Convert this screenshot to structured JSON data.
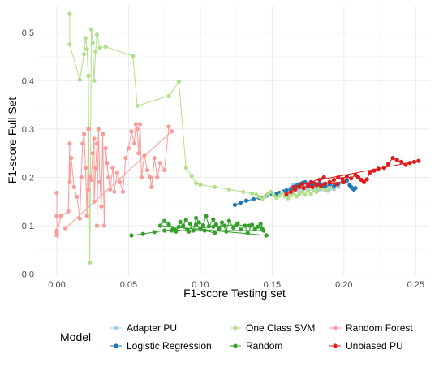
{
  "chart_data": {
    "type": "scatter",
    "xlabel": "F1-score Testing set",
    "ylabel": "F1-score Full Set",
    "xlim": [
      -0.013,
      0.26
    ],
    "ylim": [
      -0.004,
      0.555
    ],
    "x_ticks": [
      0.0,
      0.05,
      0.1,
      0.15,
      0.2,
      0.25
    ],
    "x_tick_labels": [
      "0.00",
      "0.05",
      "0.10",
      "0.15",
      "0.20",
      "0.25"
    ],
    "y_ticks": [
      0.0,
      0.1,
      0.2,
      0.3,
      0.4,
      0.5
    ],
    "y_tick_labels": [
      "0.0",
      "0.1",
      "0.2",
      "0.3",
      "0.4",
      "0.5"
    ],
    "grid": true,
    "legend_title": "Model",
    "legend_position": "bottom",
    "series": [
      {
        "name": "Adapter PU",
        "color": "#a6cee3",
        "points": [
          [
            0.16,
            0.175
          ],
          [
            0.163,
            0.178
          ],
          [
            0.166,
            0.181
          ],
          [
            0.169,
            0.184
          ],
          [
            0.172,
            0.181
          ],
          [
            0.175,
            0.178
          ],
          [
            0.178,
            0.183
          ],
          [
            0.181,
            0.18
          ],
          [
            0.184,
            0.177
          ],
          [
            0.187,
            0.182
          ],
          [
            0.19,
            0.179
          ],
          [
            0.193,
            0.176
          ],
          [
            0.174,
            0.186
          ],
          [
            0.168,
            0.172
          ],
          [
            0.182,
            0.174
          ],
          [
            0.177,
            0.189
          ],
          [
            0.186,
            0.187
          ],
          [
            0.164,
            0.185
          ],
          [
            0.171,
            0.176
          ],
          [
            0.179,
            0.173
          ],
          [
            0.189,
            0.172
          ],
          [
            0.196,
            0.18
          ]
        ]
      },
      {
        "name": "Logistic Regression",
        "color": "#1f78b4",
        "points": [
          [
            0.124,
            0.143
          ],
          [
            0.128,
            0.148
          ],
          [
            0.132,
            0.152
          ],
          [
            0.137,
            0.155
          ],
          [
            0.141,
            0.158
          ],
          [
            0.146,
            0.162
          ],
          [
            0.15,
            0.165
          ],
          [
            0.153,
            0.166
          ],
          [
            0.155,
            0.168
          ],
          [
            0.158,
            0.171
          ],
          [
            0.16,
            0.173
          ],
          [
            0.163,
            0.176
          ],
          [
            0.165,
            0.179
          ],
          [
            0.167,
            0.183
          ],
          [
            0.169,
            0.186
          ],
          [
            0.171,
            0.188
          ],
          [
            0.173,
            0.19
          ],
          [
            0.175,
            0.185
          ],
          [
            0.177,
            0.182
          ],
          [
            0.179,
            0.188
          ],
          [
            0.181,
            0.184
          ],
          [
            0.183,
            0.187
          ],
          [
            0.185,
            0.183
          ],
          [
            0.187,
            0.181
          ],
          [
            0.19,
            0.185
          ],
          [
            0.193,
            0.182
          ],
          [
            0.196,
            0.186
          ],
          [
            0.199,
            0.19
          ],
          [
            0.202,
            0.194
          ],
          [
            0.204,
            0.184
          ],
          [
            0.205,
            0.18
          ],
          [
            0.206,
            0.177
          ],
          [
            0.207,
            0.175
          ],
          [
            0.208,
            0.178
          ]
        ]
      },
      {
        "name": "One Class SVM",
        "color": "#b2df8a",
        "points": [
          [
            0.009,
            0.538
          ],
          [
            0.009,
            0.475
          ],
          [
            0.016,
            0.402
          ],
          [
            0.019,
            0.455
          ],
          [
            0.02,
            0.488
          ],
          [
            0.021,
            0.465
          ],
          [
            0.022,
            0.41
          ],
          [
            0.023,
            0.024
          ],
          [
            0.024,
            0.506
          ],
          [
            0.025,
            0.478
          ],
          [
            0.026,
            0.4
          ],
          [
            0.027,
            0.46
          ],
          [
            0.028,
            0.495
          ],
          [
            0.03,
            0.468
          ],
          [
            0.034,
            0.47
          ],
          [
            0.053,
            0.451
          ],
          [
            0.056,
            0.348
          ],
          [
            0.078,
            0.368
          ],
          [
            0.085,
            0.398
          ],
          [
            0.09,
            0.22
          ],
          [
            0.094,
            0.203
          ],
          [
            0.097,
            0.188
          ],
          [
            0.1,
            0.185
          ],
          [
            0.11,
            0.18
          ],
          [
            0.12,
            0.175
          ],
          [
            0.13,
            0.17
          ],
          [
            0.136,
            0.167
          ],
          [
            0.139,
            0.164
          ],
          [
            0.141,
            0.16
          ],
          [
            0.143,
            0.155
          ],
          [
            0.145,
            0.16
          ],
          [
            0.147,
            0.165
          ],
          [
            0.149,
            0.17
          ],
          [
            0.151,
            0.163
          ],
          [
            0.153,
            0.158
          ],
          [
            0.155,
            0.162
          ],
          [
            0.157,
            0.168
          ],
          [
            0.159,
            0.161
          ],
          [
            0.161,
            0.157
          ],
          [
            0.163,
            0.163
          ],
          [
            0.165,
            0.167
          ],
          [
            0.167,
            0.161
          ],
          [
            0.169,
            0.165
          ],
          [
            0.171,
            0.17
          ],
          [
            0.173,
            0.164
          ],
          [
            0.175,
            0.172
          ],
          [
            0.177,
            0.166
          ],
          [
            0.179,
            0.175
          ],
          [
            0.181,
            0.17
          ],
          [
            0.183,
            0.178
          ],
          [
            0.187,
            0.174
          ],
          [
            0.19,
            0.178
          ]
        ]
      },
      {
        "name": "Random",
        "color": "#33a02c",
        "points": [
          [
            0.052,
            0.08
          ],
          [
            0.06,
            0.083
          ],
          [
            0.068,
            0.087
          ],
          [
            0.075,
            0.09
          ],
          [
            0.082,
            0.092
          ],
          [
            0.092,
            0.088
          ],
          [
            0.1,
            0.095
          ],
          [
            0.109,
            0.098
          ],
          [
            0.117,
            0.1
          ],
          [
            0.125,
            0.102
          ],
          [
            0.134,
            0.1
          ],
          [
            0.143,
            0.095
          ],
          [
            0.146,
            0.08
          ],
          [
            0.072,
            0.1
          ],
          [
            0.075,
            0.11
          ],
          [
            0.078,
            0.103
          ],
          [
            0.081,
            0.095
          ],
          [
            0.083,
            0.088
          ],
          [
            0.086,
            0.108
          ],
          [
            0.088,
            0.1
          ],
          [
            0.09,
            0.112
          ],
          [
            0.093,
            0.104
          ],
          [
            0.095,
            0.09
          ],
          [
            0.097,
            0.116
          ],
          [
            0.099,
            0.107
          ],
          [
            0.102,
            0.101
          ],
          [
            0.104,
            0.12
          ],
          [
            0.106,
            0.099
          ],
          [
            0.109,
            0.113
          ],
          [
            0.111,
            0.103
          ],
          [
            0.113,
            0.094
          ],
          [
            0.115,
            0.107
          ],
          [
            0.118,
            0.088
          ],
          [
            0.12,
            0.11
          ],
          [
            0.123,
            0.096
          ],
          [
            0.126,
            0.105
          ],
          [
            0.128,
            0.092
          ],
          [
            0.131,
            0.1
          ],
          [
            0.133,
            0.085
          ],
          [
            0.136,
            0.102
          ],
          [
            0.138,
            0.093
          ],
          [
            0.14,
            0.098
          ],
          [
            0.142,
            0.104
          ],
          [
            0.144,
            0.09
          ],
          [
            0.08,
            0.09
          ],
          [
            0.085,
            0.098
          ],
          [
            0.091,
            0.092
          ],
          [
            0.097,
            0.102
          ],
          [
            0.103,
            0.09
          ],
          [
            0.11,
            0.085
          ]
        ]
      },
      {
        "name": "Random Forest",
        "color": "#fb9a99",
        "points": [
          [
            0.0,
            0.12
          ],
          [
            0.0,
            0.168
          ],
          [
            0.0,
            0.09
          ],
          [
            0.0,
            0.08
          ],
          [
            0.0,
            0.085
          ],
          [
            0.003,
            0.12
          ],
          [
            0.008,
            0.13
          ],
          [
            0.009,
            0.27
          ],
          [
            0.009,
            0.19
          ],
          [
            0.01,
            0.24
          ],
          [
            0.012,
            0.18
          ],
          [
            0.014,
            0.16
          ],
          [
            0.016,
            0.115
          ],
          [
            0.017,
            0.2
          ],
          [
            0.018,
            0.27
          ],
          [
            0.019,
            0.29
          ],
          [
            0.02,
            0.22
          ],
          [
            0.021,
            0.12
          ],
          [
            0.022,
            0.3
          ],
          [
            0.022,
            0.175
          ],
          [
            0.023,
            0.2
          ],
          [
            0.024,
            0.195
          ],
          [
            0.025,
            0.25
          ],
          [
            0.026,
            0.28
          ],
          [
            0.026,
            0.15
          ],
          [
            0.027,
            0.22
          ],
          [
            0.028,
            0.27
          ],
          [
            0.028,
            0.1
          ],
          [
            0.029,
            0.3
          ],
          [
            0.03,
            0.19
          ],
          [
            0.031,
            0.14
          ],
          [
            0.032,
            0.29
          ],
          [
            0.033,
            0.1
          ],
          [
            0.034,
            0.26
          ],
          [
            0.035,
            0.23
          ],
          [
            0.036,
            0.2
          ],
          [
            0.037,
            0.175
          ],
          [
            0.039,
            0.22
          ],
          [
            0.04,
            0.17
          ],
          [
            0.042,
            0.21
          ],
          [
            0.044,
            0.19
          ],
          [
            0.046,
            0.17
          ],
          [
            0.048,
            0.24
          ],
          [
            0.05,
            0.26
          ],
          [
            0.052,
            0.295
          ],
          [
            0.054,
            0.27
          ],
          [
            0.055,
            0.31
          ],
          [
            0.056,
            0.3
          ],
          [
            0.057,
            0.25
          ],
          [
            0.058,
            0.31
          ],
          [
            0.059,
            0.2
          ],
          [
            0.061,
            0.245
          ],
          [
            0.063,
            0.215
          ],
          [
            0.065,
            0.2
          ],
          [
            0.066,
            0.18
          ],
          [
            0.068,
            0.24
          ],
          [
            0.07,
            0.2
          ],
          [
            0.072,
            0.23
          ],
          [
            0.075,
            0.215
          ],
          [
            0.078,
            0.305
          ],
          [
            0.08,
            0.295
          ],
          [
            0.006,
            0.095
          ]
        ]
      },
      {
        "name": "Unbiased PU",
        "color": "#e31a1c",
        "points": [
          [
            0.16,
            0.165
          ],
          [
            0.163,
            0.17
          ],
          [
            0.166,
            0.175
          ],
          [
            0.169,
            0.18
          ],
          [
            0.172,
            0.178
          ],
          [
            0.175,
            0.183
          ],
          [
            0.178,
            0.18
          ],
          [
            0.181,
            0.185
          ],
          [
            0.184,
            0.182
          ],
          [
            0.187,
            0.187
          ],
          [
            0.19,
            0.19
          ],
          [
            0.193,
            0.195
          ],
          [
            0.196,
            0.2
          ],
          [
            0.199,
            0.197
          ],
          [
            0.202,
            0.202
          ],
          [
            0.205,
            0.198
          ],
          [
            0.208,
            0.205
          ],
          [
            0.21,
            0.2
          ],
          [
            0.212,
            0.195
          ],
          [
            0.214,
            0.19
          ],
          [
            0.216,
            0.196
          ],
          [
            0.218,
            0.21
          ],
          [
            0.221,
            0.214
          ],
          [
            0.224,
            0.218
          ],
          [
            0.228,
            0.22
          ],
          [
            0.231,
            0.228
          ],
          [
            0.234,
            0.24
          ],
          [
            0.237,
            0.236
          ],
          [
            0.24,
            0.232
          ],
          [
            0.243,
            0.226
          ],
          [
            0.246,
            0.23
          ],
          [
            0.249,
            0.232
          ],
          [
            0.252,
            0.234
          ],
          [
            0.183,
            0.195
          ],
          [
            0.186,
            0.2
          ],
          [
            0.177,
            0.19
          ],
          [
            0.195,
            0.186
          ],
          [
            0.2,
            0.19
          ],
          [
            0.171,
            0.186
          ],
          [
            0.165,
            0.18
          ]
        ]
      }
    ]
  }
}
